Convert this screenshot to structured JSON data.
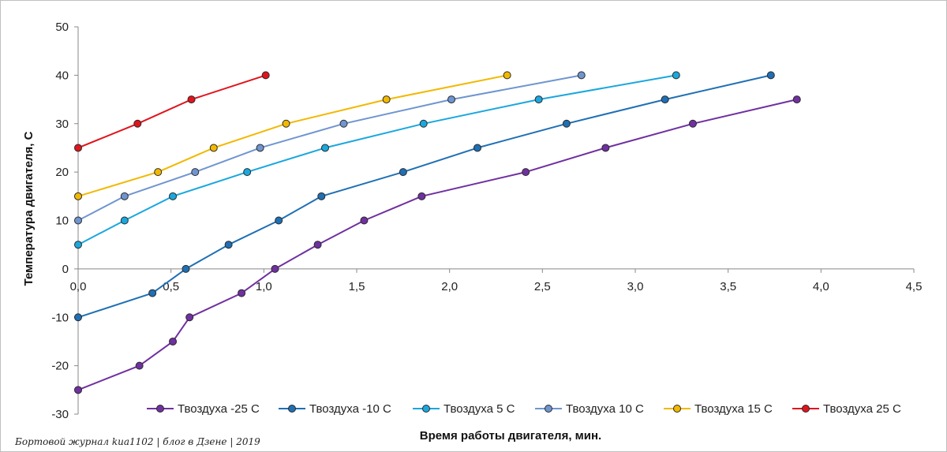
{
  "chart_data": {
    "type": "line",
    "xlabel": "Время работы двигателя, мин.",
    "ylabel": "Температура  двигателя, С",
    "xlim": [
      0,
      4.5
    ],
    "ylim": [
      -30,
      50
    ],
    "x_ticks": [
      "0,0",
      "0,5",
      "1,0",
      "1,5",
      "2,0",
      "2,5",
      "3,0",
      "3,5",
      "4,0",
      "4,5"
    ],
    "y_ticks": [
      "50",
      "40",
      "30",
      "20",
      "10",
      "0",
      "-10",
      "-20",
      "-30"
    ],
    "grid": false,
    "legend_position": "bottom-right",
    "series": [
      {
        "name": "Твоздуха -25 С",
        "color": "#7030a0",
        "points": [
          [
            0,
            -25
          ],
          [
            0.33,
            -20
          ],
          [
            0.51,
            -15
          ],
          [
            0.6,
            -10
          ],
          [
            0.88,
            -5
          ],
          [
            1.06,
            0
          ],
          [
            1.29,
            5
          ],
          [
            1.54,
            10
          ],
          [
            1.85,
            15
          ],
          [
            2.41,
            20
          ],
          [
            2.84,
            25
          ],
          [
            3.31,
            30
          ],
          [
            3.87,
            35
          ]
        ]
      },
      {
        "name": "Твоздуха -10 С",
        "color": "#1f6fb4",
        "points": [
          [
            0,
            -10
          ],
          [
            0.4,
            -5
          ],
          [
            0.58,
            0
          ],
          [
            0.81,
            5
          ],
          [
            1.08,
            10
          ],
          [
            1.31,
            15
          ],
          [
            1.75,
            20
          ],
          [
            2.15,
            25
          ],
          [
            2.63,
            30
          ],
          [
            3.16,
            35
          ],
          [
            3.73,
            40
          ]
        ]
      },
      {
        "name": "Твоздуха 5 С",
        "color": "#1aa7de",
        "points": [
          [
            0,
            5
          ],
          [
            0.25,
            10
          ],
          [
            0.51,
            15
          ],
          [
            0.91,
            20
          ],
          [
            1.33,
            25
          ],
          [
            1.86,
            30
          ],
          [
            2.48,
            35
          ],
          [
            3.22,
            40
          ]
        ]
      },
      {
        "name": "Твоздуха 10 С",
        "color": "#6f95d0",
        "points": [
          [
            0,
            10
          ],
          [
            0.25,
            15
          ],
          [
            0.63,
            20
          ],
          [
            0.98,
            25
          ],
          [
            1.43,
            30
          ],
          [
            2.01,
            35
          ],
          [
            2.71,
            40
          ]
        ]
      },
      {
        "name": "Твоздуха 15 С",
        "color": "#f2b800",
        "points": [
          [
            0,
            15
          ],
          [
            0.43,
            20
          ],
          [
            0.73,
            25
          ],
          [
            1.12,
            30
          ],
          [
            1.66,
            35
          ],
          [
            2.31,
            40
          ]
        ]
      },
      {
        "name": "Твоздуха 25 С",
        "color": "#e0141c",
        "points": [
          [
            0,
            25
          ],
          [
            0.32,
            30
          ],
          [
            0.61,
            35
          ],
          [
            1.01,
            40
          ]
        ]
      }
    ]
  },
  "watermark": "Бортовой журнал kиа1102 | блог в Дзене | 2019"
}
